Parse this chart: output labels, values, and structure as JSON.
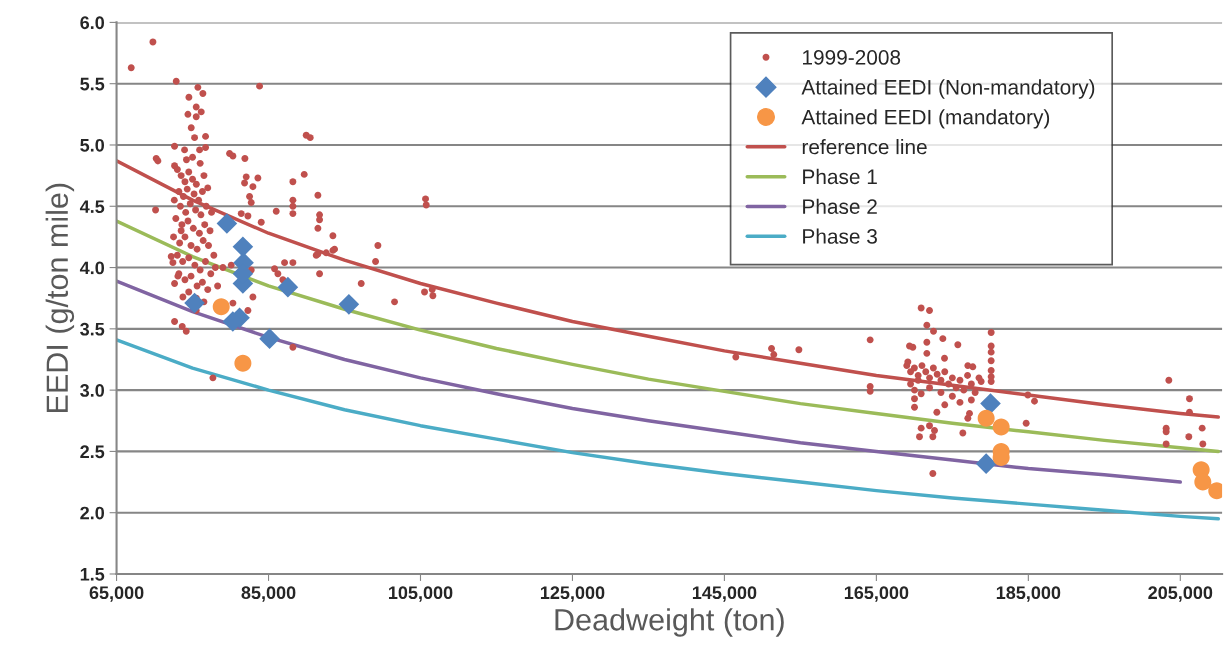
{
  "chart_data": {
    "type": "scatter",
    "xlabel": "Deadweight (ton)",
    "ylabel": "EEDI (g/ton mile)",
    "xlim": [
      65000,
      210500
    ],
    "ylim": [
      1.5,
      6.0
    ],
    "xticks": [
      {
        "value": 65000,
        "label": "65,000"
      },
      {
        "value": 85000,
        "label": "85,000"
      },
      {
        "value": 105000,
        "label": "105,000"
      },
      {
        "value": 125000,
        "label": "125,000"
      },
      {
        "value": 145000,
        "label": "145,000"
      },
      {
        "value": 165000,
        "label": "165,000"
      },
      {
        "value": 185000,
        "label": "185,000"
      },
      {
        "value": 205000,
        "label": "205,000"
      }
    ],
    "yticks": [
      {
        "value": 1.5,
        "label": "1.5"
      },
      {
        "value": 2.0,
        "label": "2.0"
      },
      {
        "value": 2.5,
        "label": "2.5"
      },
      {
        "value": 3.0,
        "label": "3.0"
      },
      {
        "value": 3.5,
        "label": "3.5"
      },
      {
        "value": 4.0,
        "label": "4.0"
      },
      {
        "value": 4.5,
        "label": "4.5"
      },
      {
        "value": 5.0,
        "label": "5.0"
      },
      {
        "value": 5.5,
        "label": "5.5"
      },
      {
        "value": 6.0,
        "label": "6.0"
      }
    ],
    "grid": "y",
    "legend": "top right",
    "series": [
      {
        "name": "1999-2008",
        "marker": "circle",
        "color": "#c0504d",
        "x": [
          69782,
          66930,
          72853,
          83820,
          75700,
          76360,
          74520,
          75485,
          76143,
          74390,
          75485,
          74827,
          75266,
          76714,
          89962,
          90489,
          72633,
          73949,
          75924,
          76714,
          70220,
          70440,
          79872,
          80311,
          81890,
          72633,
          89698,
          88206,
          82066,
          83600,
          81846,
          82943,
          82504,
          82724,
          91497,
          88206,
          88206,
          88206,
          70133,
          86013,
          91717,
          91717,
          91497,
          81407,
          82285,
          84039,
          93472,
          93691,
          91277,
          92594,
          99394,
          99087,
          91717,
          97200,
          101587,
          87110,
          88206,
          85793,
          86232,
          86890,
          78995,
          80092,
          82724,
          82943,
          80311,
          82285,
          88206,
          77679,
          72633,
          73642,
          74169,
          72195,
          72414,
          72633,
          73072,
          73730,
          75485,
          105666,
          105754,
          91496,
          93470,
          106543,
          105534,
          106630,
          73000,
          73500,
          74000,
          74500,
          75000,
          75500,
          73200,
          73800,
          74300,
          75200,
          75800,
          76300,
          72600,
          73400,
          74100,
          74700,
          75400,
          76100,
          76800,
          72800,
          73600,
          74400,
          75100,
          75900,
          76600,
          77300,
          72500,
          73300,
          74000,
          74800,
          75600,
          76400,
          77100,
          77800,
          73000,
          73700,
          74500,
          75300,
          76000,
          76700,
          77400,
          73200,
          74000,
          74800,
          75600,
          76300,
          77000,
          74500,
          75500,
          76500,
          78000,
          78300,
          74200,
          75000,
          76000,
          76500,
          77000,
          73500,
          77500,
          146500,
          151200,
          151500,
          154800,
          170895,
          171992,
          164183,
          171641,
          172518,
          180108,
          173747,
          171641,
          171641,
          175721,
          169360,
          169798,
          180108,
          180108,
          173967,
          180108,
          180108,
          180108,
          180108,
          169140,
          177694,
          177036,
          178790,
          164183,
          164183,
          170018,
          170895,
          170018,
          170018,
          184934,
          185811,
          172957,
          177256,
          177036,
          184715,
          171992,
          172650,
          170895,
          170675,
          172431,
          176378,
          172431,
          203490,
          206209,
          206209,
          203139,
          203139,
          203139,
          207877,
          206121,
          207965,
          169000,
          169500,
          170000,
          170500,
          171000,
          171500,
          172000,
          172500,
          173000,
          173500,
          174000,
          174500,
          175000,
          175500,
          176000,
          176500,
          177000,
          177500,
          178000,
          169500,
          170500,
          172000,
          173500,
          175000,
          176000,
          177500,
          178500,
          174000
        ],
        "values": [
          5.84,
          5.63,
          5.52,
          5.48,
          5.47,
          5.42,
          5.39,
          5.31,
          5.27,
          5.25,
          5.23,
          5.14,
          5.06,
          5.07,
          5.08,
          5.06,
          4.99,
          4.96,
          4.96,
          4.98,
          4.89,
          4.87,
          4.93,
          4.91,
          4.89,
          4.83,
          4.76,
          4.7,
          4.74,
          4.73,
          4.69,
          4.66,
          4.58,
          4.53,
          4.59,
          4.55,
          4.5,
          4.44,
          4.47,
          4.46,
          4.43,
          4.39,
          4.32,
          4.44,
          4.42,
          4.37,
          4.26,
          4.15,
          4.1,
          4.12,
          4.18,
          4.05,
          3.95,
          3.87,
          3.72,
          4.04,
          4.04,
          3.99,
          3.95,
          3.9,
          4.0,
          4.02,
          3.98,
          3.76,
          3.71,
          3.65,
          3.35,
          3.1,
          3.56,
          3.52,
          3.48,
          4.09,
          4.04,
          3.87,
          3.93,
          3.76,
          3.65,
          4.56,
          4.51,
          4.11,
          4.14,
          3.82,
          3.8,
          3.77,
          4.8,
          4.75,
          4.7,
          4.78,
          4.72,
          4.68,
          4.62,
          4.58,
          4.64,
          4.6,
          4.55,
          4.62,
          4.55,
          4.5,
          4.45,
          4.52,
          4.47,
          4.43,
          4.5,
          4.4,
          4.35,
          4.38,
          4.32,
          4.28,
          4.35,
          4.3,
          4.25,
          4.2,
          4.25,
          4.18,
          4.15,
          4.22,
          4.18,
          4.1,
          4.1,
          4.05,
          4.08,
          4.02,
          3.98,
          4.05,
          3.95,
          3.95,
          3.9,
          3.93,
          3.85,
          3.88,
          3.82,
          3.8,
          3.75,
          3.72,
          4.0,
          3.85,
          4.88,
          4.9,
          4.85,
          4.75,
          4.65,
          4.3,
          4.45,
          3.27,
          3.34,
          3.29,
          3.33,
          3.67,
          3.65,
          3.41,
          3.53,
          3.48,
          3.47,
          3.42,
          3.39,
          3.3,
          3.37,
          3.36,
          3.35,
          3.36,
          3.31,
          3.26,
          3.24,
          3.16,
          3.11,
          3.07,
          3.23,
          3.19,
          3.2,
          3.07,
          3.03,
          2.99,
          3.0,
          2.97,
          2.93,
          2.86,
          2.96,
          2.91,
          2.82,
          2.81,
          2.77,
          2.73,
          2.71,
          2.67,
          2.69,
          2.62,
          2.62,
          2.65,
          2.32,
          3.08,
          2.93,
          2.82,
          2.69,
          2.66,
          2.56,
          2.69,
          2.62,
          2.56,
          3.2,
          3.15,
          3.18,
          3.12,
          3.2,
          3.15,
          3.1,
          3.18,
          3.13,
          3.08,
          3.15,
          3.05,
          3.1,
          3.02,
          3.08,
          3.0,
          3.12,
          3.05,
          2.98,
          3.05,
          3.08,
          3.02,
          2.98,
          2.95,
          2.9,
          2.92,
          3.1,
          2.88
        ]
      },
      {
        "name": "Attained EEDI (Non-mandatory)",
        "marker": "diamond",
        "color": "#4f81bd",
        "x": [
          79521,
          81626,
          81714,
          81626,
          81626,
          87549,
          95577,
          75266,
          81187,
          80300,
          85135,
          180020,
          179449
        ],
        "values": [
          4.36,
          4.17,
          4.04,
          3.87,
          3.95,
          3.84,
          3.7,
          3.71,
          3.59,
          3.56,
          3.42,
          2.89,
          2.4
        ]
      },
      {
        "name": "Attained EEDI (mandatory)",
        "marker": "circle",
        "color": "#f79646",
        "x": [
          78775,
          81626,
          179449,
          181423,
          181423,
          181423,
          207745,
          207965,
          209800
        ],
        "values": [
          3.68,
          3.22,
          2.77,
          2.7,
          2.5,
          2.45,
          2.35,
          2.25,
          2.18
        ]
      },
      {
        "name": "reference line",
        "type": "line",
        "color": "#c0504d",
        "x": [
          65000,
          75000,
          85000,
          95000,
          105000,
          115000,
          125000,
          135000,
          145000,
          155000,
          165000,
          175000,
          185000,
          195000,
          205000,
          210000
        ],
        "values": [
          4.87,
          4.55,
          4.28,
          4.06,
          3.87,
          3.71,
          3.56,
          3.44,
          3.32,
          3.22,
          3.12,
          3.04,
          2.96,
          2.88,
          2.81,
          2.78
        ]
      },
      {
        "name": "Phase 1",
        "type": "line",
        "color": "#9bbb59",
        "x": [
          65000,
          75000,
          85000,
          95000,
          105000,
          115000,
          125000,
          135000,
          145000,
          155000,
          165000,
          175000,
          185000,
          195000,
          205000,
          210000
        ],
        "values": [
          4.38,
          4.09,
          3.85,
          3.66,
          3.49,
          3.34,
          3.21,
          3.09,
          2.99,
          2.89,
          2.81,
          2.73,
          2.66,
          2.59,
          2.53,
          2.5
        ]
      },
      {
        "name": "Phase 2",
        "type": "line",
        "color": "#8064a2",
        "x": [
          65000,
          75000,
          85000,
          95000,
          105000,
          115000,
          125000,
          135000,
          145000,
          155000,
          165000,
          175000,
          185000,
          195000,
          205000
        ],
        "values": [
          3.89,
          3.64,
          3.43,
          3.25,
          3.1,
          2.97,
          2.85,
          2.75,
          2.66,
          2.57,
          2.5,
          2.43,
          2.36,
          2.31,
          2.25
        ]
      },
      {
        "name": "Phase 3",
        "type": "line",
        "color": "#4bacc6",
        "x": [
          65000,
          75000,
          85000,
          95000,
          105000,
          115000,
          125000,
          135000,
          145000,
          155000,
          165000,
          175000,
          185000,
          195000,
          205000,
          210000
        ],
        "values": [
          3.41,
          3.18,
          3.0,
          2.84,
          2.71,
          2.6,
          2.49,
          2.4,
          2.32,
          2.25,
          2.18,
          2.12,
          2.07,
          2.02,
          1.97,
          1.95
        ]
      }
    ]
  }
}
